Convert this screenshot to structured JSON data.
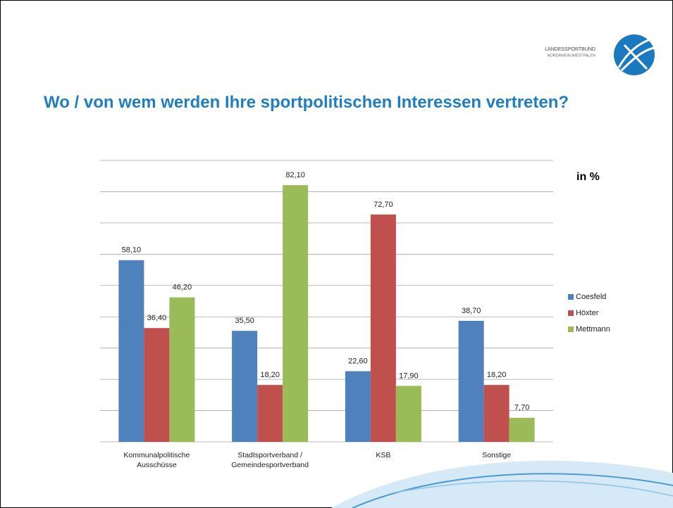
{
  "header": {
    "logo_line1": "LANDESSPORTBUND",
    "logo_line2": "NORDRHEIN-WESTFALEN"
  },
  "chart_data": {
    "type": "bar",
    "title": "Wo / von wem werden Ihre sportpolitischen Interessen vertreten?",
    "annotation": "in %",
    "categories": [
      "Kommunalpolitische Ausschüsse",
      "Stadtsportverband / Gemeindesportverband",
      "KSB",
      "Sonstige"
    ],
    "series": [
      {
        "name": "Coesfeld",
        "color": "#4f81bd",
        "values": [
          58.1,
          35.5,
          22.6,
          38.7
        ],
        "value_labels": [
          "58,10",
          "35,50",
          "22,60",
          "38,70"
        ]
      },
      {
        "name": "Höxter",
        "color": "#c0504d",
        "values": [
          36.4,
          18.2,
          72.7,
          18.2
        ],
        "value_labels": [
          "36,40",
          "18,20",
          "72,70",
          "18,20"
        ]
      },
      {
        "name": "Mettmann",
        "color": "#9bbb59",
        "values": [
          46.2,
          82.1,
          17.9,
          7.7
        ],
        "value_labels": [
          "46,20",
          "82,10",
          "17,90",
          "7,70"
        ]
      }
    ],
    "ylim": [
      0,
      90
    ],
    "yticks": [
      0,
      10,
      20,
      30,
      40,
      50,
      60,
      70,
      80,
      90
    ],
    "grid": true,
    "legend": "right"
  }
}
